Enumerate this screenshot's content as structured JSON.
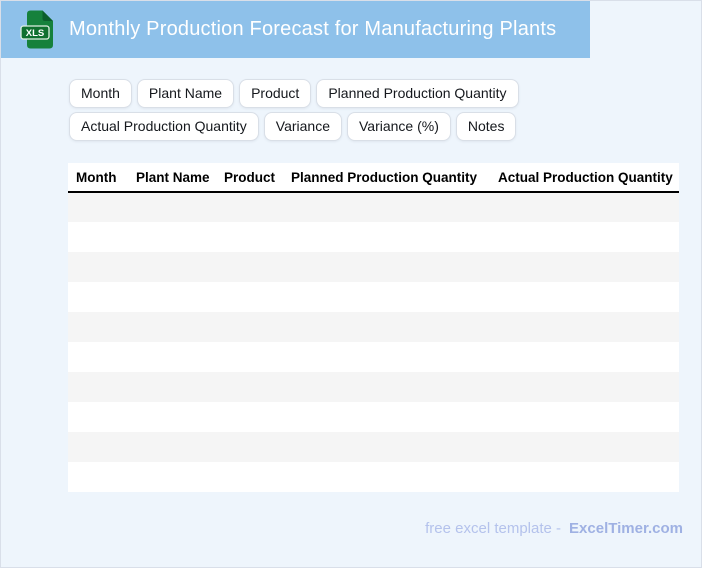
{
  "header": {
    "title": "Monthly Production Forecast for Manufacturing Plants",
    "file_icon_label": "XLS"
  },
  "chips": [
    "Month",
    "Plant Name",
    "Product",
    "Planned Production Quantity",
    "Actual Production Quantity",
    "Variance",
    "Variance (%)",
    "Notes"
  ],
  "table": {
    "columns": [
      "Month",
      "Plant Name",
      "Product",
      "Planned Production Quantity",
      "Actual Production Quantity"
    ],
    "empty_row_count": 10
  },
  "footer": {
    "tagline": "free excel template -",
    "brand": "ExcelTimer.com"
  },
  "colors": {
    "header_bg": "#8ec1ea",
    "page_bg": "#eef5fc",
    "row_stripe": "#f5f5f5",
    "icon_green": "#16813c",
    "icon_green_dark": "#0b5e2d",
    "footer_tagline": "#b4c2ec",
    "footer_brand": "#9fb1e3"
  }
}
